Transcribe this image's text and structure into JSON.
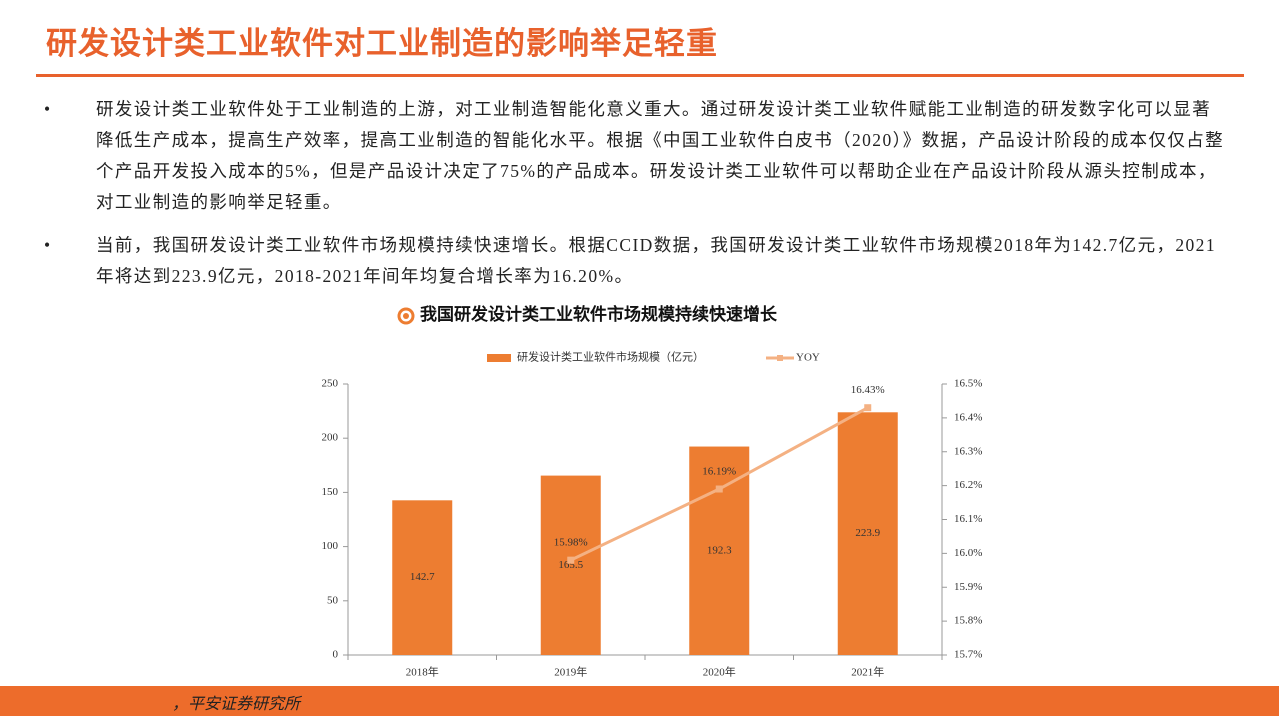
{
  "header": {
    "title": "研发设计类工业软件对工业制造的影响举足轻重"
  },
  "bullets": [
    "研发设计类工业软件处于工业制造的上游，对工业制造智能化意义重大。通过研发设计类工业软件赋能工业制造的研发数字化可以显著降低生产成本，提高生产效率，提高工业制造的智能化水平。根据《中国工业软件白皮书（2020）》数据，产品设计阶段的成本仅仅占整个产品开发投入成本的5%，但是产品设计决定了75%的产品成本。研发设计类工业软件可以帮助企业在产品设计阶段从源头控制成本，对工业制造的影响举足轻重。",
    "当前，我国研发设计类工业软件市场规模持续快速增长。根据CCID数据，我国研发设计类工业软件市场规模2018年为142.7亿元，2021年将达到223.9亿元，2018-2021年间年均复合增长率为16.20%。"
  ],
  "footer": {
    "source": "，平安证券研究所"
  },
  "chart_data": {
    "type": "bar",
    "title": "我国研发设计类工业软件市场规模持续快速增长",
    "categories": [
      "2018年",
      "2019年",
      "2020年",
      "2021年"
    ],
    "series": [
      {
        "name": "研发设计类工业软件市场规模（亿元）",
        "type": "bar",
        "color": "#ed7d31",
        "values": [
          142.7,
          165.5,
          192.3,
          223.9
        ]
      },
      {
        "name": "YOY",
        "type": "line",
        "axis": "y2",
        "color": "#f4b183",
        "values": [
          null,
          15.98,
          16.19,
          16.43
        ],
        "value_labels": [
          null,
          "15.98%",
          "16.19%",
          "16.43%"
        ]
      }
    ],
    "ylim": [
      0,
      250
    ],
    "yticks": [
      0,
      50,
      100,
      150,
      200,
      250
    ],
    "y2lim": [
      15.7,
      16.5
    ],
    "y2ticks": [
      {
        "value": 15.7,
        "label": "15.7%"
      },
      {
        "value": 15.8,
        "label": "15.8%"
      },
      {
        "value": 15.9,
        "label": "15.9%"
      },
      {
        "value": 16.0,
        "label": "16.0%"
      },
      {
        "value": 16.1,
        "label": "16.1%"
      },
      {
        "value": 16.2,
        "label": "16.2%"
      },
      {
        "value": 16.3,
        "label": "16.3%"
      },
      {
        "value": 16.4,
        "label": "16.4%"
      },
      {
        "value": 16.5,
        "label": "16.5%"
      }
    ],
    "legend": "top"
  }
}
